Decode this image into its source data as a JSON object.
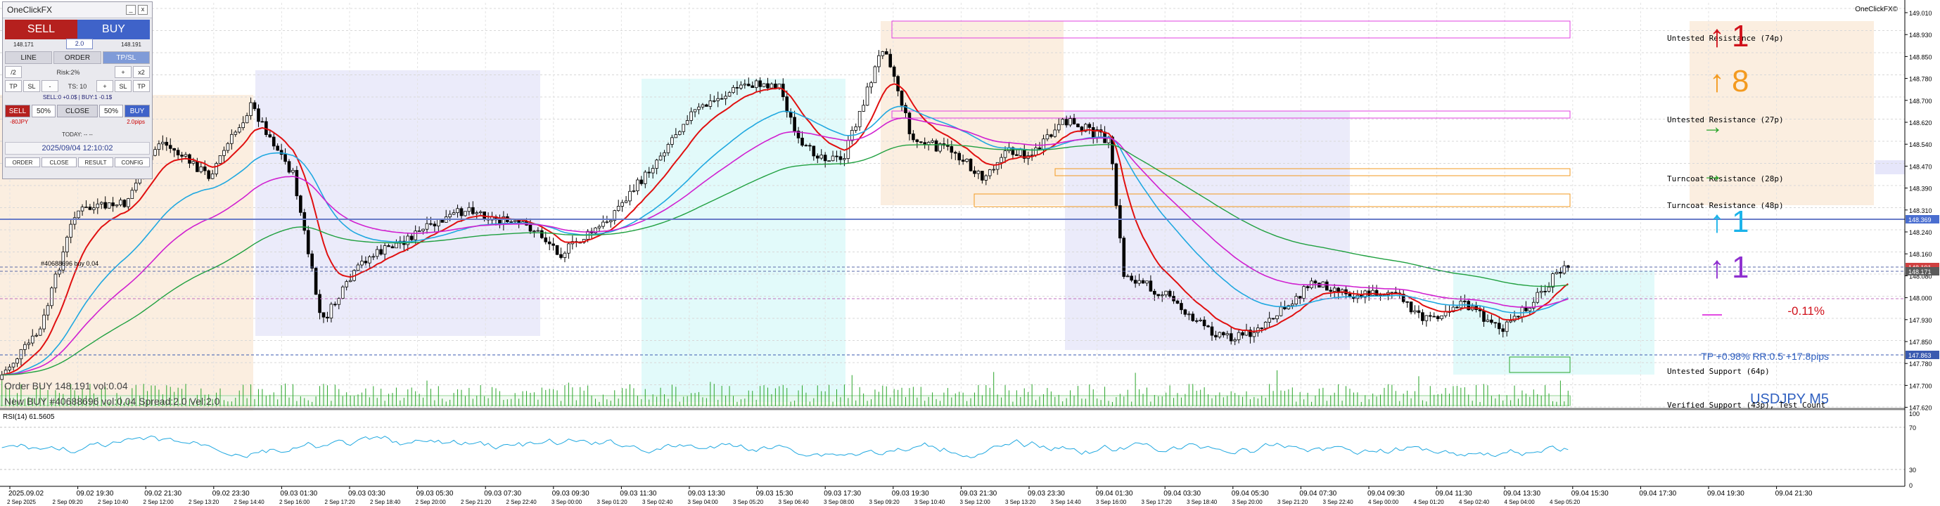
{
  "chart": {
    "top_right_title": "OneClickFX©",
    "symbol_timeframe": "USDJPY M5",
    "rsi_label": "RSI(14) 61.5605",
    "position_label": "#40688696 buy 0.04",
    "order_text_1": "Order BUY 148.191 vol:0.04",
    "order_text_2": "New BUY #40688696 vol:0.04 Spread:2.0 Vel:2.0",
    "pct_change": "-0.11%",
    "tp_text": "TP +0.98% RR:0.5 +17.8pips",
    "colors": {
      "bg": "#ffffff",
      "up_arrow_red": "#d0101a",
      "up_arrow_orange": "#f39a1f",
      "arrow_green": "#2aa52a",
      "arrow_blue": "#1ab3ea",
      "arrow_purple": "#8e2fcf",
      "ma_red": "#e01010",
      "ma_blue": "#20a8e0",
      "ma_magenta": "#d020d0",
      "ma_green": "#20a040"
    },
    "zones": [
      {
        "label": "Untested Resistance (74p)"
      },
      {
        "label": "Untested Resistance (27p)"
      },
      {
        "label": "Turncoat Resistance (28p)"
      },
      {
        "label": "Turncoat Resistance (48p)"
      },
      {
        "label": "Untested Support (64p)"
      },
      {
        "label": "Verified Support (43p), Test Count"
      }
    ],
    "signals": [
      {
        "arrow": "↑",
        "num": "1",
        "color": "#d0101a"
      },
      {
        "arrow": "↑",
        "num": "8",
        "color": "#f39a1f"
      },
      {
        "arrow": "→",
        "num": "",
        "color": "#2aa52a"
      },
      {
        "arrow": "→",
        "num": "",
        "color": "#2aa52a"
      },
      {
        "arrow": "↑",
        "num": "1",
        "color": "#1ab3ea"
      },
      {
        "arrow": "↑",
        "num": "1",
        "color": "#8e2fcf"
      },
      {
        "arrow": "—",
        "num": "",
        "color": "#e040e0"
      }
    ],
    "price_ticks": [
      "149.010",
      "148.930",
      "148.850",
      "148.780",
      "148.700",
      "148.620",
      "148.540",
      "148.470",
      "148.390",
      "148.310",
      "148.240",
      "148.160",
      "148.080",
      "148.000",
      "147.930",
      "147.850",
      "147.780",
      "147.700",
      "147.620"
    ],
    "price_badges": [
      "148.369",
      "148.191",
      "148.171",
      "147.863"
    ],
    "rsi_ticks": [
      "100",
      "70",
      "30",
      "0"
    ],
    "time_ticks_top": [
      "2025.09.02",
      "09.02 19:30",
      "09.02 21:30",
      "09.02 23:30",
      "09.03 01:30",
      "09.03 03:30",
      "09.03 05:30",
      "09.03 07:30",
      "09.03 09:30",
      "09.03 11:30",
      "09.03 13:30",
      "09.03 15:30",
      "09.03 17:30",
      "09.03 19:30",
      "09.03 21:30",
      "09.03 23:30",
      "09.04 01:30",
      "09.04 03:30",
      "09.04 05:30",
      "09.04 07:30",
      "09.04 09:30",
      "09.04 11:30",
      "09.04 13:30",
      "09.04 15:30",
      "09.04 17:30",
      "09.04 19:30",
      "09.04 21:30"
    ],
    "time_ticks_bottom": [
      "2 Sep 2025",
      "2 Sep 09:20",
      "2 Sep 10:40",
      "2 Sep 12:00",
      "2 Sep 13:20",
      "2 Sep 14:40",
      "2 Sep 16:00",
      "2 Sep 17:20",
      "2 Sep 18:40",
      "2 Sep 20:00",
      "2 Sep 21:20",
      "2 Sep 22:40",
      "3 Sep 00:00",
      "3 Sep 01:20",
      "3 Sep 02:40",
      "3 Sep 04:00",
      "3 Sep 05:20",
      "3 Sep 06:40",
      "3 Sep 08:00",
      "3 Sep 09:20",
      "3 Sep 10:40",
      "3 Sep 12:00",
      "3 Sep 13:20",
      "3 Sep 14:40",
      "3 Sep 16:00",
      "3 Sep 17:20",
      "3 Sep 18:40",
      "3 Sep 20:00",
      "3 Sep 21:20",
      "3 Sep 22:40",
      "4 Sep 00:00",
      "4 Sep 01:20",
      "4 Sep 02:40",
      "4 Sep 04:00",
      "4 Sep 05:20"
    ]
  },
  "panel": {
    "title": "OneClickFX",
    "sell_label": "SELL",
    "buy_label": "BUY",
    "sell_price": "148.171",
    "buy_price": "148.191",
    "lot": "2.0",
    "tab_line": "LINE",
    "tab_order": "ORDER",
    "tab_tpsl": "TP/SL",
    "div2": "/2",
    "risk": "Risk:2%",
    "plus": "+",
    "x2": "x2",
    "tp": "TP",
    "sl": "SL",
    "minus": "-",
    "ts": "TS: 10",
    "info": "SELL:0 +0.0$ | BUY:1 -0.1$",
    "sell_small": "SELL",
    "pct50a": "50%",
    "close": "CLOSE",
    "pct50b": "50%",
    "buy_small": "BUY",
    "pnl_left": "-80JPY",
    "pnl_right": "2.0pips",
    "today": "TODAY: -- --",
    "datetime": "2025/09/04  12:10:02",
    "btab_order": "ORDER",
    "btab_close": "CLOSE",
    "btab_result": "RESULT",
    "btab_config": "CONFIG",
    "close_x": "x",
    "minimize": "_"
  }
}
